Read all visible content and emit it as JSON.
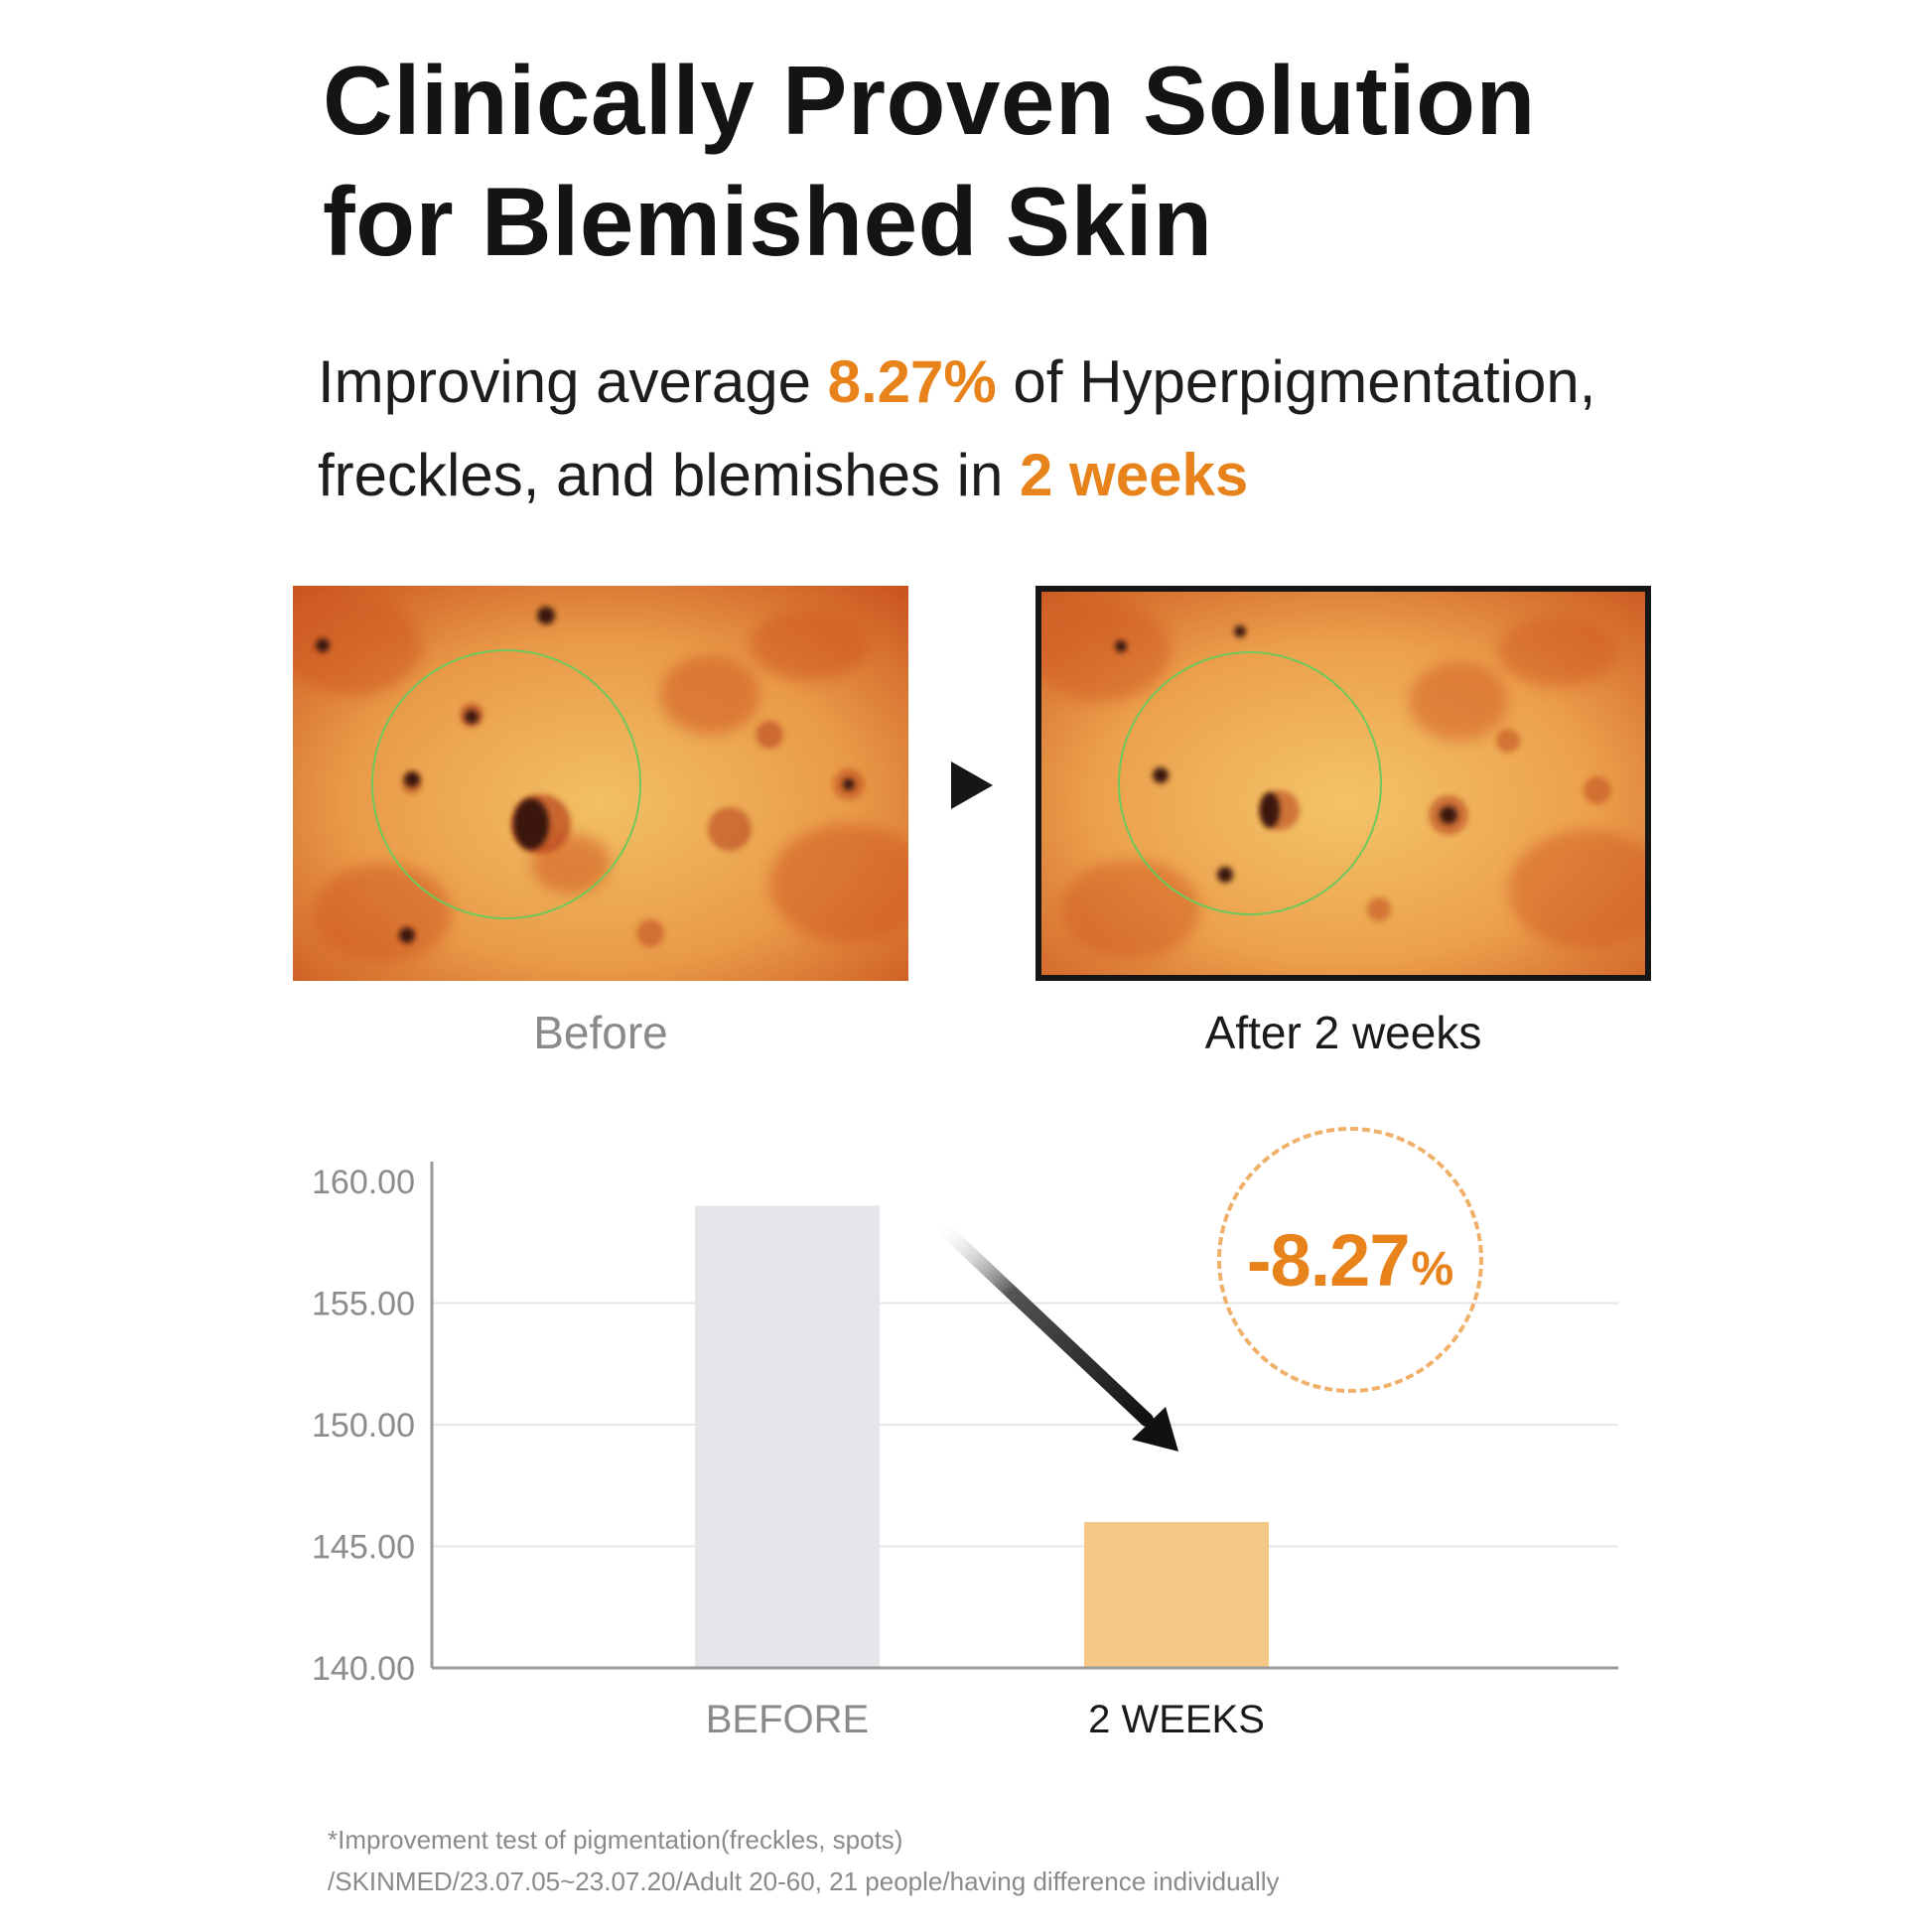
{
  "headline": {
    "line1": "Clinically Proven Solution",
    "line2": "for Blemished Skin"
  },
  "subheadline": {
    "part1": "Improving average ",
    "highlight1": "8.27%",
    "part2": " of Hyperpigmentation,",
    "part3": "freckles, and blemishes in ",
    "highlight2": "2 weeks"
  },
  "photos": {
    "before_caption": "Before",
    "after_caption": "After 2 weeks"
  },
  "badge": {
    "value": "-8.27",
    "unit": "%"
  },
  "colors": {
    "accent": "#e8821a",
    "before_bar": "#e4e6ea",
    "after_bar": "#f5c887",
    "badge_border": "#f0b06a"
  },
  "chart_data": {
    "type": "bar",
    "categories": [
      "BEFORE",
      "2 WEEKS"
    ],
    "values": [
      159.0,
      146.0
    ],
    "ylim": [
      140,
      160
    ],
    "yticks": [
      "160.00",
      "155.00",
      "150.00",
      "145.00",
      "140.00"
    ],
    "ytick_values": [
      160,
      155,
      150,
      145,
      140
    ],
    "grid": true,
    "title": "",
    "xlabel": "",
    "ylabel": ""
  },
  "footnote": {
    "line1": "*Improvement test of pigmentation(freckles, spots)",
    "line2": "/SKINMED/23.07.05~23.07.20/Adult 20-60, 21 people/having difference individually"
  }
}
